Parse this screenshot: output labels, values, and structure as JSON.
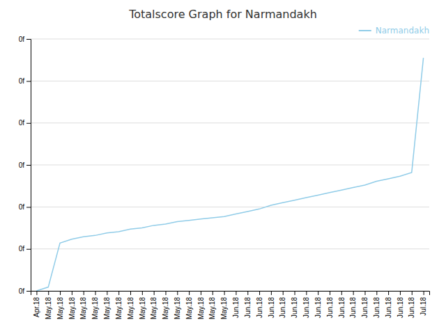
{
  "chart_data": {
    "type": "line",
    "title": "Totalscore Graph for Narmandakh",
    "categories": [
      "Apr.18",
      "May.18",
      "May.18",
      "May.18",
      "May.18",
      "May.18",
      "May.18",
      "May.18",
      "May.18",
      "May.18",
      "May.18",
      "May.18",
      "May.18",
      "May.18",
      "May.18",
      "May.18",
      "May.18",
      "Jun.18",
      "Jun.18",
      "Jun.18",
      "Jun.18",
      "Jun.18",
      "Jun.18",
      "Jun.18",
      "Jun.18",
      "Jun.18",
      "Jun.18",
      "Jun.18",
      "Jun.18",
      "Jun.18",
      "Jun.18",
      "Jun.18",
      "Jun.18",
      "Jul.18"
    ],
    "series": [
      {
        "name": "Narmandakh",
        "color": "#90cce8",
        "values": [
          0,
          0.03,
          0.38,
          0.41,
          0.43,
          0.44,
          0.46,
          0.47,
          0.49,
          0.5,
          0.52,
          0.53,
          0.55,
          0.56,
          0.57,
          0.58,
          0.59,
          0.61,
          0.63,
          0.65,
          0.68,
          0.7,
          0.72,
          0.74,
          0.76,
          0.78,
          0.8,
          0.82,
          0.84,
          0.87,
          0.89,
          0.91,
          0.94,
          1.85
        ]
      }
    ],
    "ylim": [
      0,
      2.0
    ],
    "yticks": [
      {
        "value": 0,
        "label": "0f"
      },
      {
        "value": 0.333,
        "label": "0f"
      },
      {
        "value": 0.666,
        "label": "0f"
      },
      {
        "value": 1.0,
        "label": "0f"
      },
      {
        "value": 1.333,
        "label": "0f"
      },
      {
        "value": 1.666,
        "label": "0f"
      },
      {
        "value": 2.0,
        "label": "0f"
      }
    ],
    "grid": true,
    "legend": "upper right"
  }
}
